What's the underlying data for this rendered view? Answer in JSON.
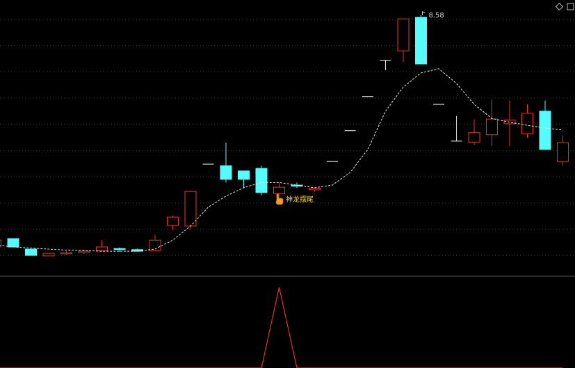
{
  "chart_data": [
    {
      "type": "candlestick",
      "categories": [
        null,
        null,
        null,
        null,
        null,
        null,
        null,
        null,
        null,
        null,
        null,
        null,
        null,
        null,
        null,
        null,
        null,
        null,
        null,
        null,
        null,
        null,
        null,
        null,
        null,
        null,
        null,
        null,
        null,
        null,
        null,
        null,
        null
      ],
      "open": [
        4.16,
        4.32,
        4.12,
        3.99,
        4.03,
        4.05,
        4.09,
        4.13,
        4.11,
        4.09,
        4.57,
        4.56,
        5.74,
        5.71,
        5.61,
        5.66,
        5.18,
        5.34,
        5.25,
        5.79,
        6.38,
        7.03,
        7.72,
        7.9,
        8.54,
        6.88,
        6.18,
        6.16,
        6.3,
        6.51,
        6.32,
        6.75,
        5.79
      ],
      "high": [
        4.33,
        4.32,
        4.12,
        4.05,
        4.08,
        4.11,
        4.29,
        4.15,
        4.13,
        4.39,
        4.76,
        5.22,
        5.74,
        6.15,
        5.61,
        5.71,
        5.39,
        5.39,
        5.29,
        5.79,
        6.38,
        7.03,
        7.72,
        8.51,
        8.58,
        6.88,
        6.66,
        6.59,
        6.97,
        6.95,
        6.88,
        6.95,
        6.28
      ],
      "low": [
        4.12,
        4.16,
        4.0,
        3.99,
        4.01,
        4.03,
        4.07,
        4.07,
        4.07,
        4.09,
        4.49,
        4.49,
        5.74,
        5.39,
        5.29,
        5.14,
        5.16,
        5.29,
        5.22,
        5.79,
        6.38,
        7.03,
        7.53,
        7.69,
        7.65,
        6.88,
        6.18,
        6.11,
        6.08,
        6.08,
        6.24,
        6.02,
        5.71
      ],
      "close": [
        4.29,
        4.16,
        4.0,
        4.04,
        4.05,
        4.08,
        4.16,
        4.11,
        4.08,
        4.29,
        4.73,
        5.22,
        5.74,
        5.45,
        5.45,
        5.2,
        5.3,
        5.32,
        5.28,
        5.79,
        6.38,
        7.03,
        7.72,
        8.51,
        7.65,
        6.88,
        6.18,
        6.34,
        6.6,
        6.58,
        6.71,
        6.02,
        6.15
      ],
      "up_color": "#e8322f",
      "down_color": "#54fcfc",
      "flat_color": "#dcdcdc",
      "ma": {
        "color": "#e6e6e6",
        "values": [
          4.2,
          4.16,
          4.14,
          4.12,
          4.1,
          4.09,
          4.08,
          4.08,
          4.08,
          4.12,
          4.29,
          4.56,
          4.92,
          5.13,
          5.29,
          5.39,
          5.39,
          5.34,
          5.29,
          5.34,
          5.58,
          6.02,
          6.75,
          7.21,
          7.48,
          7.56,
          7.28,
          6.88,
          6.61,
          6.54,
          6.48,
          6.43,
          6.39
        ]
      },
      "ylim": [
        3.63,
        8.87
      ],
      "gridlines": [
        4,
        4.5,
        5,
        5.5,
        6,
        6.5,
        7,
        7.5,
        8,
        8.5
      ],
      "annotation": "神龙摆尾"
    },
    {
      "type": "line",
      "values": [
        0,
        0,
        0,
        0,
        0,
        0,
        0,
        0,
        0,
        0,
        0,
        0,
        0,
        0,
        0,
        0,
        1,
        0,
        0,
        0,
        0,
        0,
        0,
        0,
        0,
        0,
        0,
        0,
        0,
        0,
        0,
        0,
        0
      ],
      "color": "#e0302f",
      "ylim": [
        0,
        1
      ]
    }
  ]
}
